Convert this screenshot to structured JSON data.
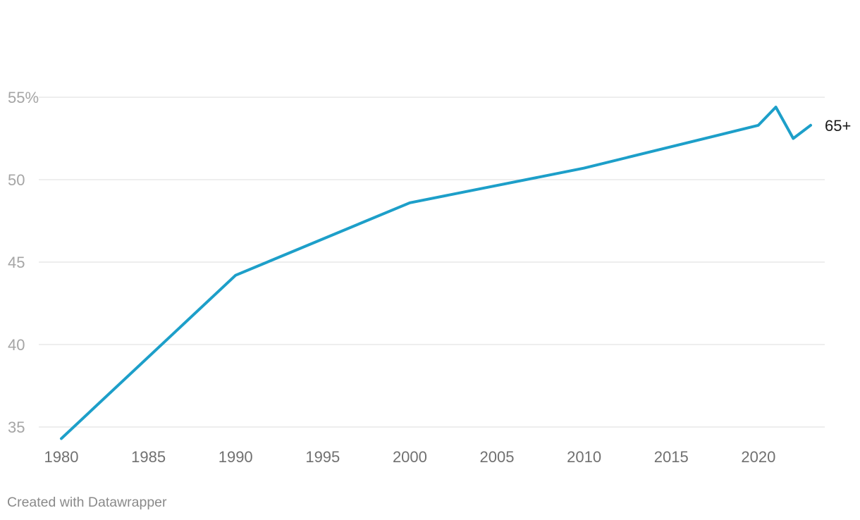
{
  "chart_data": {
    "type": "line",
    "title": "",
    "xlabel": "",
    "ylabel": "",
    "xlim": [
      1980,
      2023
    ],
    "ylim": [
      34.6,
      56.5
    ],
    "x_ticks": [
      {
        "value": 1980,
        "label": "1980"
      },
      {
        "value": 1985,
        "label": "1985"
      },
      {
        "value": 1990,
        "label": "1990"
      },
      {
        "value": 1995,
        "label": "1995"
      },
      {
        "value": 2000,
        "label": "2000"
      },
      {
        "value": 2005,
        "label": "2005"
      },
      {
        "value": 2010,
        "label": "2010"
      },
      {
        "value": 2015,
        "label": "2015"
      },
      {
        "value": 2020,
        "label": "2020"
      }
    ],
    "y_ticks": [
      {
        "value": 35,
        "label": "35"
      },
      {
        "value": 40,
        "label": "40"
      },
      {
        "value": 45,
        "label": "45"
      },
      {
        "value": 50,
        "label": "50"
      },
      {
        "value": 55,
        "label": "55%"
      }
    ],
    "grid": true,
    "legend": "none",
    "series": [
      {
        "name": "65+",
        "color": "#1d9fc9",
        "x": [
          1980,
          1990,
          2000,
          2010,
          2020,
          2021,
          2022,
          2023
        ],
        "values": [
          34.3,
          44.2,
          48.6,
          50.7,
          53.3,
          54.4,
          52.5,
          53.3
        ]
      }
    ]
  },
  "footer": {
    "credit": "Created with Datawrapper"
  }
}
